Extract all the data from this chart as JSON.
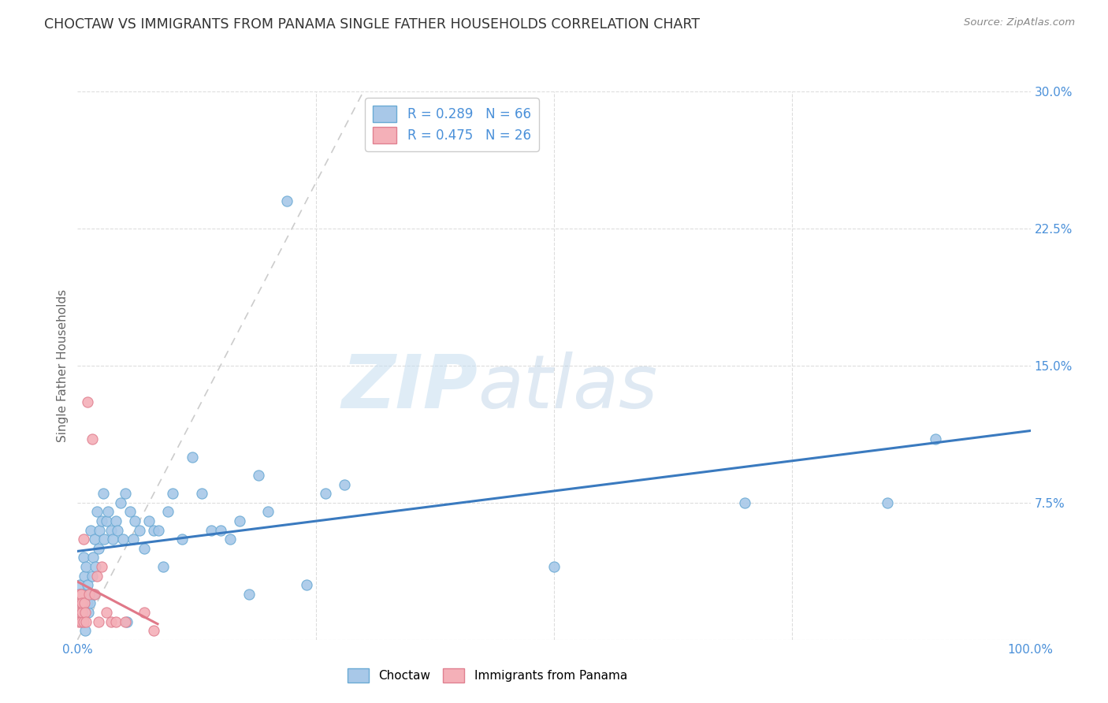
{
  "title": "CHOCTAW VS IMMIGRANTS FROM PANAMA SINGLE FATHER HOUSEHOLDS CORRELATION CHART",
  "source": "Source: ZipAtlas.com",
  "ylabel": "Single Father Households",
  "xlim": [
    0,
    1.0
  ],
  "ylim": [
    0,
    0.3
  ],
  "xticks": [
    0.0,
    0.25,
    0.5,
    0.75,
    1.0
  ],
  "xtick_labels": [
    "0.0%",
    "",
    "",
    "",
    "100.0%"
  ],
  "yticks": [
    0.0,
    0.075,
    0.15,
    0.225,
    0.3
  ],
  "ytick_labels": [
    "",
    "7.5%",
    "15.0%",
    "22.5%",
    "30.0%"
  ],
  "choctaw_color": "#a8c8e8",
  "panama_color": "#f4b0b8",
  "choctaw_edge_color": "#6aaad4",
  "panama_edge_color": "#e08090",
  "choctaw_line_color": "#3a7abf",
  "panama_line_color": "#e07888",
  "diagonal_color": "#cccccc",
  "background_color": "#ffffff",
  "grid_color": "#dddddd",
  "legend_color": "#4a90d9",
  "title_color": "#333333",
  "ylabel_color": "#666666",
  "source_color": "#888888",
  "watermark_zip_color": "#c8dff0",
  "watermark_atlas_color": "#b8d4e8",
  "choctaw_x": [
    0.002,
    0.003,
    0.004,
    0.005,
    0.006,
    0.006,
    0.007,
    0.008,
    0.008,
    0.009,
    0.01,
    0.01,
    0.011,
    0.012,
    0.013,
    0.014,
    0.015,
    0.016,
    0.017,
    0.018,
    0.019,
    0.02,
    0.022,
    0.023,
    0.025,
    0.027,
    0.028,
    0.03,
    0.032,
    0.035,
    0.037,
    0.04,
    0.042,
    0.045,
    0.048,
    0.05,
    0.052,
    0.055,
    0.058,
    0.06,
    0.065,
    0.07,
    0.075,
    0.08,
    0.085,
    0.09,
    0.095,
    0.1,
    0.11,
    0.12,
    0.13,
    0.14,
    0.15,
    0.16,
    0.17,
    0.18,
    0.19,
    0.2,
    0.22,
    0.24,
    0.26,
    0.28,
    0.5,
    0.7,
    0.85,
    0.9
  ],
  "choctaw_y": [
    0.03,
    0.025,
    0.02,
    0.015,
    0.01,
    0.045,
    0.035,
    0.025,
    0.005,
    0.04,
    0.02,
    0.03,
    0.015,
    0.025,
    0.02,
    0.06,
    0.035,
    0.045,
    0.025,
    0.055,
    0.04,
    0.07,
    0.05,
    0.06,
    0.065,
    0.08,
    0.055,
    0.065,
    0.07,
    0.06,
    0.055,
    0.065,
    0.06,
    0.075,
    0.055,
    0.08,
    0.01,
    0.07,
    0.055,
    0.065,
    0.06,
    0.05,
    0.065,
    0.06,
    0.06,
    0.04,
    0.07,
    0.08,
    0.055,
    0.1,
    0.08,
    0.06,
    0.06,
    0.055,
    0.065,
    0.025,
    0.09,
    0.07,
    0.24,
    0.03,
    0.08,
    0.085,
    0.04,
    0.075,
    0.075,
    0.11
  ],
  "panama_x": [
    0.001,
    0.002,
    0.003,
    0.003,
    0.004,
    0.004,
    0.005,
    0.005,
    0.006,
    0.006,
    0.007,
    0.008,
    0.009,
    0.01,
    0.012,
    0.015,
    0.018,
    0.02,
    0.022,
    0.025,
    0.03,
    0.035,
    0.04,
    0.05,
    0.07,
    0.08
  ],
  "panama_y": [
    0.01,
    0.025,
    0.02,
    0.015,
    0.01,
    0.025,
    0.015,
    0.02,
    0.01,
    0.055,
    0.02,
    0.015,
    0.01,
    0.13,
    0.025,
    0.11,
    0.025,
    0.035,
    0.01,
    0.04,
    0.015,
    0.01,
    0.01,
    0.01,
    0.015,
    0.005
  ]
}
